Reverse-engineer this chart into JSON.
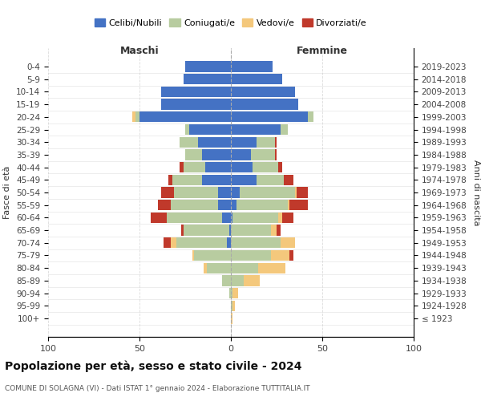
{
  "age_groups": [
    "100+",
    "95-99",
    "90-94",
    "85-89",
    "80-84",
    "75-79",
    "70-74",
    "65-69",
    "60-64",
    "55-59",
    "50-54",
    "45-49",
    "40-44",
    "35-39",
    "30-34",
    "25-29",
    "20-24",
    "15-19",
    "10-14",
    "5-9",
    "0-4"
  ],
  "birth_years": [
    "≤ 1923",
    "1924-1928",
    "1929-1933",
    "1934-1938",
    "1939-1943",
    "1944-1948",
    "1949-1953",
    "1954-1958",
    "1959-1963",
    "1964-1968",
    "1969-1973",
    "1974-1978",
    "1979-1983",
    "1984-1988",
    "1989-1993",
    "1994-1998",
    "1999-2003",
    "2004-2008",
    "2009-2013",
    "2014-2018",
    "2019-2023"
  ],
  "males": {
    "celibi": [
      0,
      0,
      0,
      0,
      0,
      0,
      2,
      1,
      5,
      7,
      7,
      16,
      14,
      16,
      18,
      23,
      50,
      38,
      38,
      26,
      25
    ],
    "coniugati": [
      0,
      0,
      1,
      5,
      13,
      20,
      28,
      25,
      30,
      26,
      24,
      16,
      12,
      9,
      10,
      2,
      2,
      0,
      0,
      0,
      0
    ],
    "vedovi": [
      0,
      0,
      0,
      0,
      2,
      1,
      3,
      0,
      0,
      0,
      0,
      0,
      0,
      0,
      0,
      0,
      2,
      0,
      0,
      0,
      0
    ],
    "divorziati": [
      0,
      0,
      0,
      0,
      0,
      0,
      4,
      1,
      9,
      7,
      7,
      2,
      2,
      0,
      0,
      0,
      0,
      0,
      0,
      0,
      0
    ]
  },
  "females": {
    "nubili": [
      0,
      0,
      0,
      0,
      0,
      0,
      0,
      0,
      1,
      3,
      5,
      14,
      12,
      11,
      14,
      27,
      42,
      37,
      35,
      28,
      23
    ],
    "coniugate": [
      0,
      1,
      1,
      7,
      15,
      22,
      27,
      22,
      25,
      28,
      30,
      15,
      14,
      13,
      10,
      4,
      3,
      0,
      0,
      0,
      0
    ],
    "vedove": [
      1,
      1,
      3,
      9,
      15,
      10,
      8,
      3,
      2,
      1,
      1,
      0,
      0,
      0,
      0,
      0,
      0,
      0,
      0,
      0,
      0
    ],
    "divorziate": [
      0,
      0,
      0,
      0,
      0,
      2,
      0,
      2,
      6,
      10,
      6,
      5,
      2,
      1,
      1,
      0,
      0,
      0,
      0,
      0,
      0
    ]
  },
  "colors": {
    "celibi": "#4472c4",
    "coniugati": "#b8cca0",
    "vedovi": "#f4c87c",
    "divorziati": "#c0392b"
  },
  "xlim": 100,
  "title": "Popolazione per età, sesso e stato civile - 2024",
  "subtitle": "COMUNE DI SOLAGNA (VI) - Dati ISTAT 1° gennaio 2024 - Elaborazione TUTTITALIA.IT",
  "ylabel_left": "Fasce di età",
  "ylabel_right": "Anni di nascita",
  "xlabel_left": "Maschi",
  "xlabel_right": "Femmine"
}
